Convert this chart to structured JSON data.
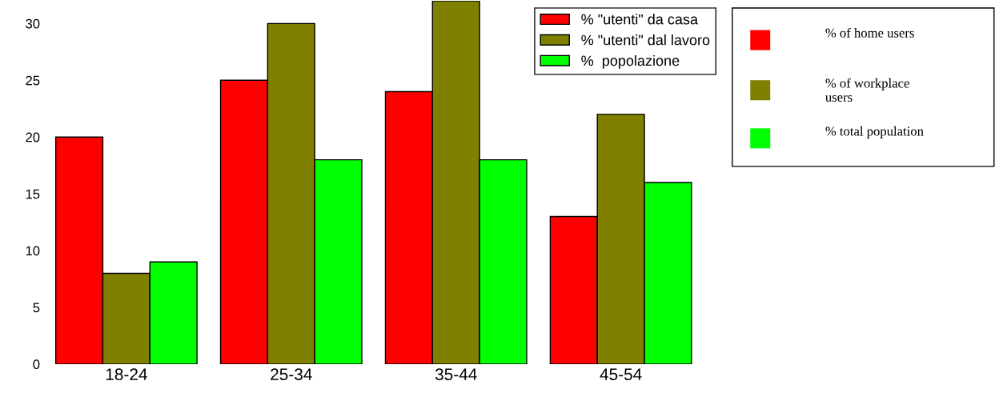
{
  "chart_data": {
    "type": "bar",
    "categories": [
      "18-24",
      "25-34",
      "35-44",
      "45-54"
    ],
    "series": [
      {
        "name": "% \"utenti\" da casa",
        "color": "#ff0000",
        "values": [
          20,
          25,
          24,
          13
        ]
      },
      {
        "name": "% \"utenti\" dal lavoro",
        "color": "#808000",
        "values": [
          8,
          30,
          32,
          22
        ]
      },
      {
        "name": "%  popolazione",
        "color": "#00ff00",
        "values": [
          9,
          18,
          18,
          16
        ]
      }
    ],
    "ylim": [
      0,
      32
    ],
    "yticks": [
      0,
      5,
      10,
      15,
      20,
      25,
      30
    ],
    "grid": false,
    "legend": "top right",
    "annotations": [
      "% of home users",
      "% of workplace\nusers",
      "% total population"
    ]
  }
}
